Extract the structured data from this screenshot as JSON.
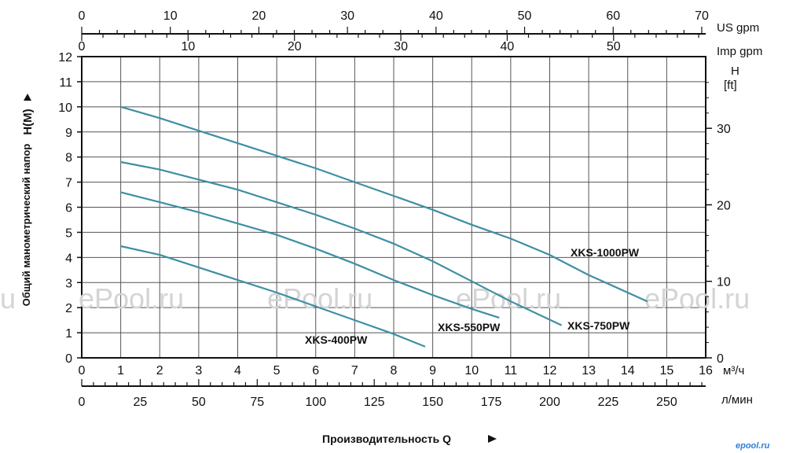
{
  "chart_data": {
    "type": "line",
    "title": "",
    "xlabel": "Производительность Q",
    "ylabel": "Общий манометрический напор",
    "ylabel_unit": "H(M)",
    "xlim": [
      0,
      16
    ],
    "ylim": [
      0,
      12
    ],
    "x_ticks": [
      0,
      1,
      2,
      3,
      4,
      5,
      6,
      7,
      8,
      9,
      10,
      11,
      12,
      13,
      14,
      15,
      16
    ],
    "y_ticks": [
      0,
      1,
      2,
      3,
      4,
      5,
      6,
      7,
      8,
      9,
      10,
      11,
      12
    ],
    "grid": true,
    "x_unit": "м³/ч",
    "secondary_axes": {
      "us_gpm": {
        "unit": "US gpm",
        "ticks": [
          0,
          10,
          20,
          30,
          40,
          50,
          60,
          70
        ],
        "per_m3h": 4.4029
      },
      "imp_gpm": {
        "unit": "Imp gpm",
        "ticks": [
          0,
          10,
          20,
          30,
          40,
          50
        ],
        "per_m3h": 3.6662
      },
      "l_min": {
        "unit": "л/мин",
        "ticks": [
          0,
          25,
          50,
          75,
          100,
          125,
          150,
          175,
          200,
          225,
          250
        ],
        "per_m3h": 16.6667
      },
      "h_ft": {
        "unit_line1": "H",
        "unit_line2": "[ft]",
        "ticks": [
          0,
          10,
          20,
          30
        ],
        "per_m": 3.28084
      }
    },
    "series": [
      {
        "name": "XKS-400PW",
        "x": [
          1,
          2,
          3,
          4,
          5,
          6,
          7,
          8,
          8.8
        ],
        "y": [
          4.45,
          4.1,
          3.6,
          3.1,
          2.6,
          2.05,
          1.5,
          0.95,
          0.45
        ]
      },
      {
        "name": "XKS-550PW",
        "x": [
          1,
          2,
          3,
          4,
          5,
          6,
          7,
          8,
          9,
          10,
          10.7
        ],
        "y": [
          6.6,
          6.2,
          5.8,
          5.35,
          4.9,
          4.35,
          3.75,
          3.1,
          2.5,
          1.95,
          1.6
        ]
      },
      {
        "name": "XKS-750PW",
        "x": [
          1,
          2,
          3,
          4,
          5,
          6,
          7,
          8,
          9,
          10,
          11,
          12.3
        ],
        "y": [
          7.8,
          7.5,
          7.1,
          6.7,
          6.2,
          5.7,
          5.15,
          4.55,
          3.85,
          3.05,
          2.25,
          1.3
        ]
      },
      {
        "name": "XKS-1000PW",
        "x": [
          1,
          2,
          3,
          4,
          5,
          6,
          7,
          8,
          9,
          10,
          11,
          12,
          13,
          14.5
        ],
        "y": [
          10.0,
          9.55,
          9.05,
          8.55,
          8.05,
          7.55,
          7.0,
          6.45,
          5.9,
          5.3,
          4.75,
          4.1,
          3.3,
          2.25
        ]
      }
    ],
    "line_color": "#3e8fa3"
  },
  "watermarks": [
    "ru",
    "ePool.ru",
    "ePool.ru",
    "ePool.ru",
    "ePool.ru"
  ],
  "brand": "epool.ru"
}
